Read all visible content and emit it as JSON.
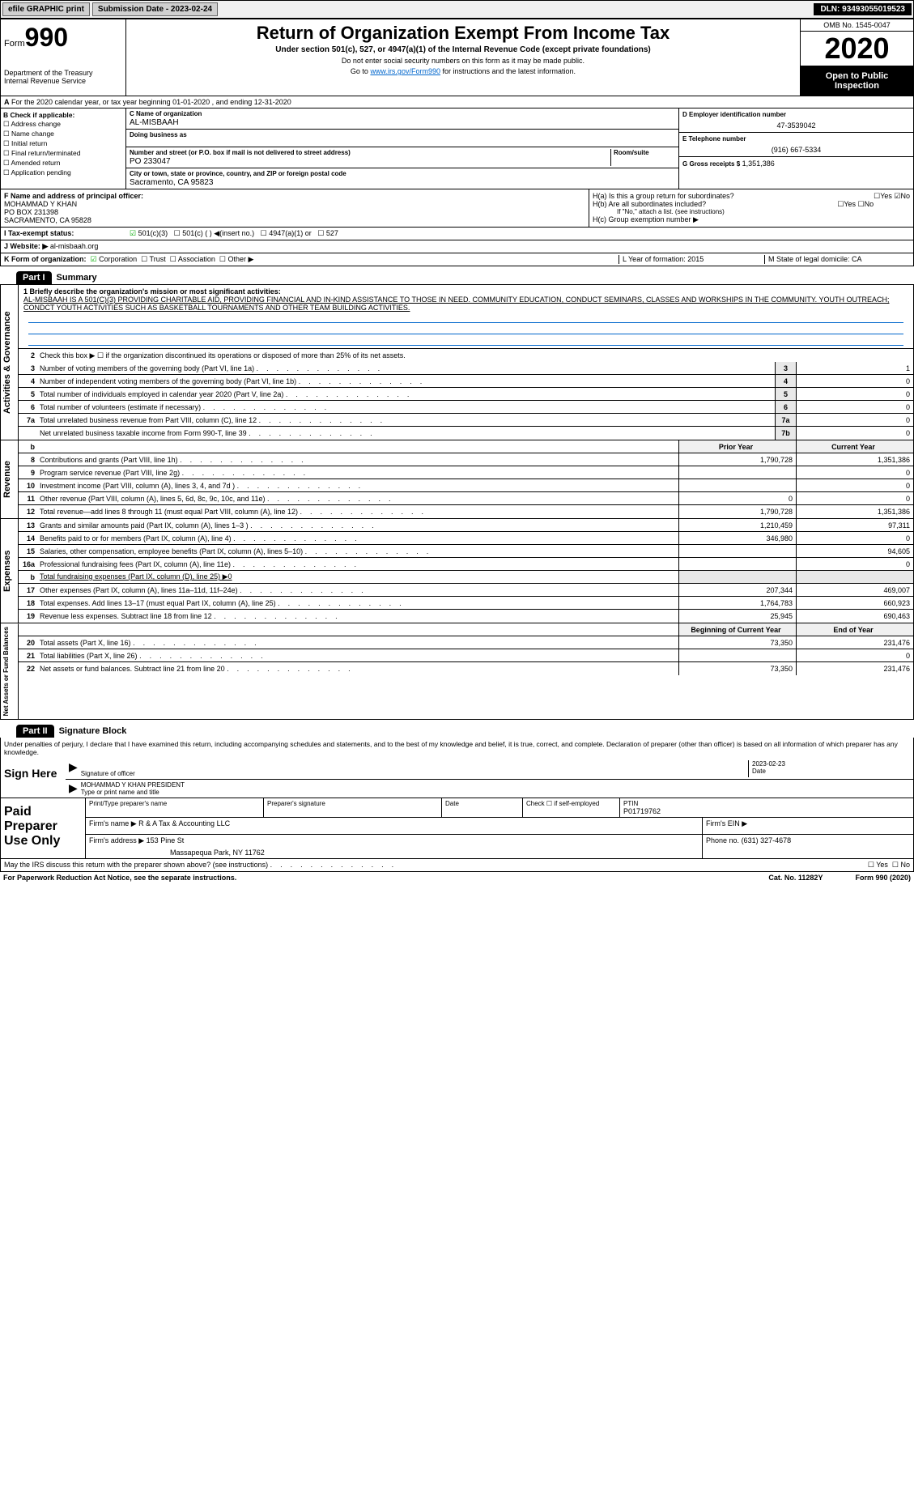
{
  "topbar": {
    "efile": "efile GRAPHIC print",
    "submission": "Submission Date - 2023-02-24",
    "dln": "DLN: 93493055019523"
  },
  "header": {
    "form": "Form",
    "formnum": "990",
    "title": "Return of Organization Exempt From Income Tax",
    "subtitle": "Under section 501(c), 527, or 4947(a)(1) of the Internal Revenue Code (except private foundations)",
    "note1": "Do not enter social security numbers on this form as it may be made public.",
    "note2_pre": "Go to ",
    "note2_link": "www.irs.gov/Form990",
    "note2_post": " for instructions and the latest information.",
    "dept": "Department of the Treasury\nInternal Revenue Service",
    "omb": "OMB No. 1545-0047",
    "year": "2020",
    "open": "Open to Public Inspection"
  },
  "rowA": "For the 2020 calendar year, or tax year beginning 01-01-2020   , and ending 12-31-2020",
  "sectionB": {
    "title": "B Check if applicable:",
    "items": [
      "Address change",
      "Name change",
      "Initial return",
      "Final return/terminated",
      "Amended return",
      "Application pending"
    ]
  },
  "orgC": {
    "lbl": "C Name of organization",
    "val": "AL-MISBAAH",
    "dba_lbl": "Doing business as",
    "addr_lbl": "Number and street (or P.O. box if mail is not delivered to street address)",
    "room_lbl": "Room/suite",
    "addr_val": "PO 233047",
    "city_lbl": "City or town, state or province, country, and ZIP or foreign postal code",
    "city_val": "Sacramento, CA  95823"
  },
  "orgD": {
    "lbl": "D Employer identification number",
    "val": "47-3539042"
  },
  "orgE": {
    "lbl": "E Telephone number",
    "val": "(916) 667-5334"
  },
  "orgG": {
    "lbl": "G Gross receipts $",
    "val": "1,351,386"
  },
  "orgF": {
    "lbl": "F  Name and address of principal officer:",
    "name": "MOHAMMAD Y KHAN",
    "addr": "PO BOX 231398",
    "city": "SACRAMENTO, CA  95828"
  },
  "orgH": {
    "ha": "H(a)  Is this a group return for subordinates?",
    "hb": "H(b)  Are all subordinates included?",
    "hb_note": "If \"No,\" attach a list. (see instructions)",
    "hc": "H(c)  Group exemption number ▶"
  },
  "rowI": {
    "lbl": "Tax-exempt status:",
    "opts": [
      "501(c)(3)",
      "501(c) (  ) ◀(insert no.)",
      "4947(a)(1) or",
      "527"
    ]
  },
  "rowJ": {
    "lbl": "Website: ▶",
    "val": "al-misbaah.org"
  },
  "rowK": {
    "lbl": "K Form of organization:",
    "opts": [
      "Corporation",
      "Trust",
      "Association",
      "Other ▶"
    ],
    "L": "L Year of formation: 2015",
    "M": "M State of legal domicile: CA"
  },
  "part1": {
    "hdr": "Part I",
    "title": "Summary",
    "line1_lbl": "1  Briefly describe the organization's mission or most significant activities:",
    "line1_txt": "AL-MISBAAH IS A 501(C)(3) PROVIDING CHARITABLE AID, PROVIDING FINANCIAL AND IN-KIND ASSISTANCE TO THOSE IN NEED. COMMUNITY EDUCATION, CONDUCT SEMINARS, CLASSES AND WORKSHIPS IN THE COMMUNITY. YOUTH OUTREACH; CONDCT YOUTH ACTIVITIES SUCH AS BASKETBALL TOURNAMENTS AND OTHER TEAM BUILDING ACTIVITIES.",
    "line2": "Check this box ▶ ☐  if the organization discontinued its operations or disposed of more than 25% of its net assets.",
    "lines_gov": [
      {
        "n": "3",
        "d": "Number of voting members of the governing body (Part VI, line 1a)",
        "b": "3",
        "v": "1"
      },
      {
        "n": "4",
        "d": "Number of independent voting members of the governing body (Part VI, line 1b)",
        "b": "4",
        "v": "0"
      },
      {
        "n": "5",
        "d": "Total number of individuals employed in calendar year 2020 (Part V, line 2a)",
        "b": "5",
        "v": "0"
      },
      {
        "n": "6",
        "d": "Total number of volunteers (estimate if necessary)",
        "b": "6",
        "v": "0"
      },
      {
        "n": "7a",
        "d": "Total unrelated business revenue from Part VIII, column (C), line 12",
        "b": "7a",
        "v": "0"
      },
      {
        "n": "",
        "d": "Net unrelated business taxable income from Form 990-T, line 39",
        "b": "7b",
        "v": "0"
      }
    ],
    "col_prior": "Prior Year",
    "col_current": "Current Year",
    "lines_rev": [
      {
        "n": "8",
        "d": "Contributions and grants (Part VIII, line 1h)",
        "p": "1,790,728",
        "c": "1,351,386"
      },
      {
        "n": "9",
        "d": "Program service revenue (Part VIII, line 2g)",
        "p": "",
        "c": "0"
      },
      {
        "n": "10",
        "d": "Investment income (Part VIII, column (A), lines 3, 4, and 7d )",
        "p": "",
        "c": "0"
      },
      {
        "n": "11",
        "d": "Other revenue (Part VIII, column (A), lines 5, 6d, 8c, 9c, 10c, and 11e)",
        "p": "0",
        "c": "0"
      },
      {
        "n": "12",
        "d": "Total revenue—add lines 8 through 11 (must equal Part VIII, column (A), line 12)",
        "p": "1,790,728",
        "c": "1,351,386"
      }
    ],
    "lines_exp": [
      {
        "n": "13",
        "d": "Grants and similar amounts paid (Part IX, column (A), lines 1–3 )",
        "p": "1,210,459",
        "c": "97,311"
      },
      {
        "n": "14",
        "d": "Benefits paid to or for members (Part IX, column (A), line 4)",
        "p": "346,980",
        "c": "0"
      },
      {
        "n": "15",
        "d": "Salaries, other compensation, employee benefits (Part IX, column (A), lines 5–10)",
        "p": "",
        "c": "94,605"
      },
      {
        "n": "16a",
        "d": "Professional fundraising fees (Part IX, column (A), line 11e)",
        "p": "",
        "c": "0"
      },
      {
        "n": "b",
        "d": "Total fundraising expenses (Part IX, column (D), line 25) ▶0",
        "p": "—",
        "c": "—"
      },
      {
        "n": "17",
        "d": "Other expenses (Part IX, column (A), lines 11a–11d, 11f–24e)",
        "p": "207,344",
        "c": "469,007"
      },
      {
        "n": "18",
        "d": "Total expenses. Add lines 13–17 (must equal Part IX, column (A), line 25)",
        "p": "1,764,783",
        "c": "660,923"
      },
      {
        "n": "19",
        "d": "Revenue less expenses. Subtract line 18 from line 12",
        "p": "25,945",
        "c": "690,463"
      }
    ],
    "col_begin": "Beginning of Current Year",
    "col_end": "End of Year",
    "lines_net": [
      {
        "n": "20",
        "d": "Total assets (Part X, line 16)",
        "p": "73,350",
        "c": "231,476"
      },
      {
        "n": "21",
        "d": "Total liabilities (Part X, line 26)",
        "p": "",
        "c": "0"
      },
      {
        "n": "22",
        "d": "Net assets or fund balances. Subtract line 21 from line 20",
        "p": "73,350",
        "c": "231,476"
      }
    ]
  },
  "part2": {
    "hdr": "Part II",
    "title": "Signature Block",
    "penalty": "Under penalties of perjury, I declare that I have examined this return, including accompanying schedules and statements, and to the best of my knowledge and belief, it is true, correct, and complete. Declaration of preparer (other than officer) is based on all information of which preparer has any knowledge.",
    "sign_here": "Sign Here",
    "sig_officer": "Signature of officer",
    "date": "Date",
    "date_val": "2023-02-23",
    "name_title": "MOHAMMAD Y KHAN  PRESIDENT",
    "type_name": "Type or print name and title",
    "paid": "Paid Preparer Use Only",
    "prep_name_lbl": "Print/Type preparer's name",
    "prep_sig_lbl": "Preparer's signature",
    "prep_date_lbl": "Date",
    "prep_check": "Check ☐ if self-employed",
    "ptin_lbl": "PTIN",
    "ptin": "P01719762",
    "firm_name_lbl": "Firm's name   ▶",
    "firm_name": "R & A Tax & Accounting LLC",
    "firm_ein_lbl": "Firm's EIN ▶",
    "firm_addr_lbl": "Firm's address ▶",
    "firm_addr": "153 Pine St",
    "firm_city": "Massapequa Park, NY  11762",
    "phone_lbl": "Phone no.",
    "phone": "(631) 327-4678",
    "discuss": "May the IRS discuss this return with the preparer shown above? (see instructions)",
    "paperwork": "For Paperwork Reduction Act Notice, see the separate instructions.",
    "cat": "Cat. No. 11282Y",
    "formfoot": "Form 990 (2020)"
  },
  "vtabs": {
    "gov": "Activities & Governance",
    "rev": "Revenue",
    "exp": "Expenses",
    "net": "Net Assets or Fund Balances"
  }
}
